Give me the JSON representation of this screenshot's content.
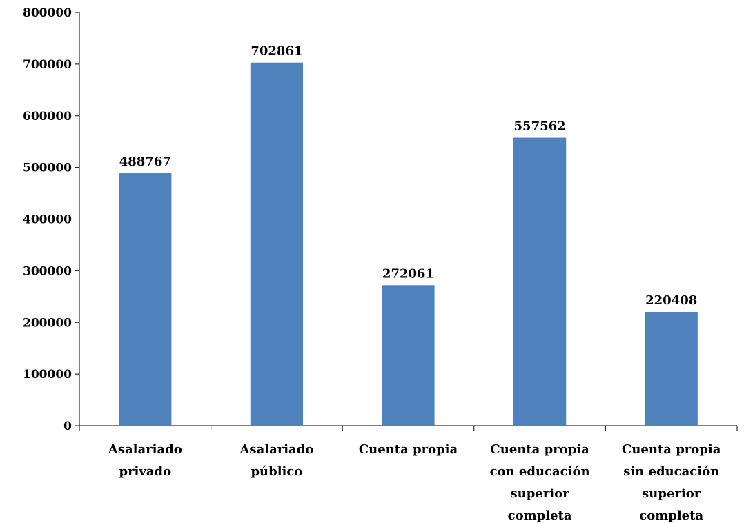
{
  "chart_data": {
    "type": "bar",
    "title": "",
    "xlabel": "",
    "ylabel": "",
    "categories": [
      [
        "Asalariado",
        "privado"
      ],
      [
        "Asalariado",
        "público"
      ],
      [
        "Cuenta propia"
      ],
      [
        "Cuenta propia",
        "con educación",
        "superior",
        "completa"
      ],
      [
        "Cuenta propia",
        "sin educación",
        "superior",
        "completa"
      ]
    ],
    "values": [
      488767,
      702861,
      272061,
      557562,
      220408
    ],
    "data_labels": [
      "488767",
      "702861",
      "272061",
      "557562",
      "220408"
    ],
    "ylim": [
      0,
      800000
    ],
    "y_ticks": [
      0,
      100000,
      200000,
      300000,
      400000,
      500000,
      600000,
      700000,
      800000
    ],
    "y_tick_labels": [
      "0",
      "100000",
      "200000",
      "300000",
      "400000",
      "500000",
      "600000",
      "700000",
      "800000"
    ],
    "grid": false,
    "legend": "none",
    "colors": {
      "bar": "#4f81bd",
      "axis": "#000000",
      "text": "#000000"
    }
  }
}
